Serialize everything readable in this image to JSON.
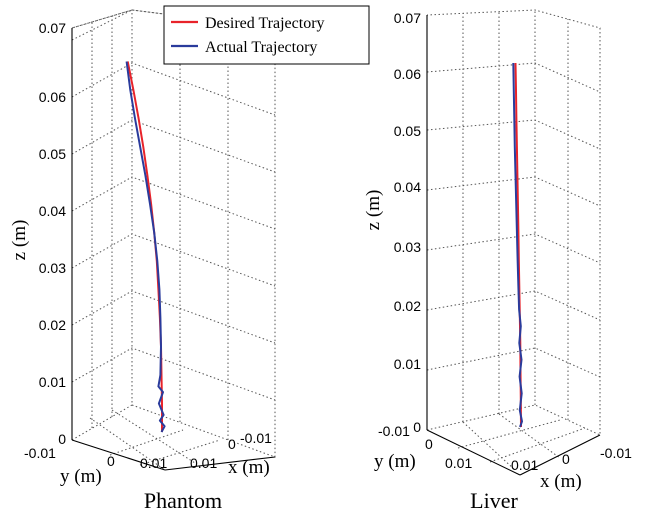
{
  "chart_data": [
    {
      "type": "line",
      "title": "Phantom",
      "xlabel": "x (m)",
      "ylabel": "y (m)",
      "zlabel": "z (m)",
      "z_ticks": [
        "0",
        "0.01",
        "0.02",
        "0.03",
        "0.04",
        "0.05",
        "0.06",
        "0.07"
      ],
      "zlim": [
        0,
        0.07
      ],
      "y_ticks": [
        "-0.01",
        "0",
        "0.01"
      ],
      "x_ticks": [
        "0.01",
        "0",
        "-0.01"
      ],
      "grid": true,
      "legend": {
        "position": "top",
        "entries": [
          {
            "label": "Desired Trajectory",
            "color": "#e8232a"
          },
          {
            "label": "Actual Trajectory",
            "color": "#2a3b9c"
          }
        ]
      },
      "series": [
        {
          "name": "Desired Trajectory",
          "color": "#e8232a",
          "z": [
            0.0,
            0.005,
            0.01,
            0.015,
            0.02,
            0.025,
            0.03,
            0.035,
            0.04,
            0.045,
            0.05,
            0.055,
            0.06,
            0.065
          ],
          "x": [
            0.0,
            0.0,
            0.0,
            0.0,
            0.0,
            0.0,
            0.0,
            0.0,
            0.0,
            0.0,
            0.0,
            0.0,
            0.0,
            0.0
          ],
          "y": [
            0.0,
            0.0,
            0.0001,
            0.0002,
            0.0004,
            0.0007,
            0.001,
            0.0015,
            0.0021,
            0.0028,
            0.0036,
            0.0045,
            0.0055,
            0.0066
          ]
        },
        {
          "name": "Actual Trajectory",
          "color": "#2a3b9c",
          "z": [
            0.0,
            0.001,
            0.002,
            0.003,
            0.005,
            0.007,
            0.008,
            0.01,
            0.015,
            0.02,
            0.025,
            0.03,
            0.035,
            0.04,
            0.045,
            0.05,
            0.055,
            0.06,
            0.065
          ],
          "x": [
            0.0,
            0.0,
            0.0,
            0.0,
            0.0,
            0.0,
            0.0,
            0.0,
            0.0,
            0.0,
            0.0,
            0.0,
            0.0,
            0.0,
            0.0,
            0.0,
            0.0,
            0.0,
            0.0
          ],
          "y": [
            0.0001,
            -0.0005,
            0.0004,
            -0.0003,
            0.0006,
            -0.0002,
            0.0007,
            0.0003,
            0.0002,
            0.0003,
            0.0005,
            0.0009,
            0.0015,
            0.0023,
            0.0032,
            0.0042,
            0.0052,
            0.0061,
            0.0068
          ]
        }
      ]
    },
    {
      "type": "line",
      "title": "Liver",
      "xlabel": "x (m)",
      "ylabel": "y (m)",
      "zlabel": "z (m)",
      "z_ticks": [
        "0",
        "0.01",
        "0.02",
        "0.03",
        "0.04",
        "0.05",
        "0.06",
        "0.07"
      ],
      "zlim": [
        0,
        0.07
      ],
      "y_ticks": [
        "-0.01",
        "0",
        "0.01"
      ],
      "x_ticks": [
        "0.01",
        "0",
        "-0.01"
      ],
      "grid": true,
      "series": [
        {
          "name": "Desired Trajectory",
          "color": "#e8232a",
          "z": [
            0.0,
            0.005,
            0.01,
            0.015,
            0.02,
            0.025,
            0.03,
            0.035,
            0.04,
            0.045,
            0.05,
            0.055,
            0.06,
            0.065
          ],
          "x": [
            0.0,
            0.0,
            0.0,
            0.0,
            0.0,
            0.0,
            0.0,
            0.0,
            0.0,
            0.0,
            0.0,
            0.0,
            0.0,
            0.0
          ],
          "y": [
            0.0,
            0.0001,
            0.0002,
            0.0003,
            0.0005,
            0.0007,
            0.0009,
            0.0011,
            0.0013,
            0.0015,
            0.0017,
            0.0019,
            0.0021,
            0.0023
          ]
        },
        {
          "name": "Actual Trajectory",
          "color": "#2a3b9c",
          "z": [
            0.0,
            0.001,
            0.003,
            0.006,
            0.009,
            0.012,
            0.015,
            0.018,
            0.021,
            0.025,
            0.03,
            0.035,
            0.04,
            0.045,
            0.05,
            0.055,
            0.06,
            0.065
          ],
          "x": [
            0.0,
            0.0,
            0.0,
            0.0,
            0.0,
            0.0,
            0.0,
            0.0,
            0.0,
            0.0,
            0.0,
            0.0,
            0.0,
            0.0,
            0.0,
            0.0,
            0.0,
            0.0
          ],
          "y": [
            0.0004,
            -0.0004,
            0.0005,
            -0.0003,
            0.0006,
            -0.0002,
            0.0007,
            0.0001,
            0.0008,
            0.0011,
            0.0014,
            0.0017,
            0.002,
            0.0023,
            0.0026,
            0.0028,
            0.003,
            0.0032
          ]
        }
      ]
    }
  ]
}
